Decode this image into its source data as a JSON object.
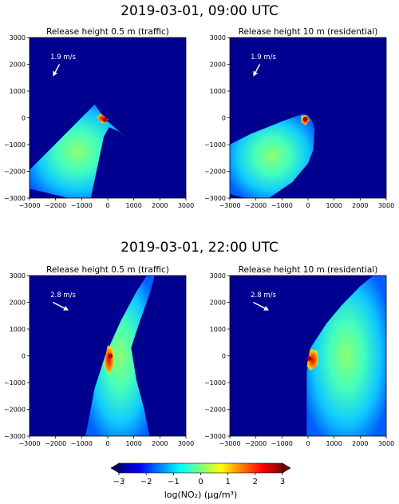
{
  "figure": {
    "row_titles": [
      "2019-03-01, 09:00 UTC",
      "2019-03-01, 22:00 UTC"
    ]
  },
  "chart_data": [
    {
      "type": "heatmap",
      "row": 0,
      "col": 0,
      "title": "Release height 0.5 m (traffic)",
      "xlim": [
        -3000,
        3000
      ],
      "ylim": [
        -3000,
        3000
      ],
      "xticks": [
        -3000,
        -2000,
        -1000,
        0,
        1000,
        2000,
        3000
      ],
      "yticks": [
        -3000,
        -2000,
        -1000,
        0,
        1000,
        2000,
        3000
      ],
      "wind_label": "1.9 m/s",
      "wind_arrow": {
        "from": [
          -1850,
          2000
        ],
        "to": [
          -2100,
          1550
        ]
      },
      "plume_polygon": [
        [
          -500,
          500
        ],
        [
          -3000,
          -1950
        ],
        [
          -3000,
          -2650
        ],
        [
          -1500,
          -3000
        ],
        [
          -650,
          -3000
        ],
        [
          -150,
          -700
        ],
        [
          50,
          -350
        ],
        [
          400,
          -500
        ],
        [
          700,
          -750
        ],
        [
          200,
          -300
        ],
        [
          -50,
          -100
        ],
        [
          -250,
          150
        ]
      ],
      "peak_polygon": [
        [
          -260,
          160
        ],
        [
          -420,
          20
        ],
        [
          -250,
          -200
        ],
        [
          -60,
          -180
        ],
        [
          20,
          -70
        ]
      ],
      "source": [
        -100,
        -80
      ]
    },
    {
      "type": "heatmap",
      "row": 0,
      "col": 1,
      "title": "Release height 10 m (residential)",
      "xlim": [
        -3000,
        3000
      ],
      "ylim": [
        -3000,
        3000
      ],
      "xticks": [
        -3000,
        -2000,
        -1000,
        0,
        1000,
        2000,
        3000
      ],
      "yticks": [
        -3000,
        -2000,
        -1000,
        0,
        1000,
        2000,
        3000
      ],
      "wind_label": "1.9 m/s",
      "wind_arrow": {
        "from": [
          -1850,
          2000
        ],
        "to": [
          -2100,
          1550
        ]
      },
      "plume_polygon": [
        [
          -200,
          150
        ],
        [
          -900,
          -100
        ],
        [
          -2200,
          -600
        ],
        [
          -3000,
          -1000
        ],
        [
          -3000,
          -2850
        ],
        [
          -2400,
          -3000
        ],
        [
          -1500,
          -3000
        ],
        [
          -600,
          -2400
        ],
        [
          0,
          -1700
        ],
        [
          200,
          -1200
        ],
        [
          250,
          -400
        ],
        [
          150,
          -100
        ],
        [
          0,
          80
        ]
      ],
      "peak_polygon": [
        [
          -280,
          80
        ],
        [
          -60,
          100
        ],
        [
          60,
          -80
        ],
        [
          -80,
          -280
        ],
        [
          -260,
          -180
        ]
      ],
      "source": [
        -100,
        -50
      ]
    },
    {
      "type": "heatmap",
      "row": 1,
      "col": 0,
      "title": "Release height 0.5 m (traffic)",
      "xlim": [
        -3000,
        3000
      ],
      "ylim": [
        -3000,
        3000
      ],
      "xticks": [
        -3000,
        -2000,
        -1000,
        0,
        1000,
        2000,
        3000
      ],
      "yticks": [
        -3000,
        -2000,
        -1000,
        0,
        1000,
        2000,
        3000
      ],
      "wind_label": "2.8 m/s",
      "wind_arrow": {
        "from": [
          -2100,
          2000
        ],
        "to": [
          -1500,
          1700
        ]
      },
      "plume_polygon": [
        [
          -850,
          -3000
        ],
        [
          -500,
          -1200
        ],
        [
          -100,
          0
        ],
        [
          500,
          1300
        ],
        [
          1100,
          2400
        ],
        [
          1500,
          3000
        ],
        [
          1800,
          3000
        ],
        [
          1600,
          2300
        ],
        [
          1200,
          1200
        ],
        [
          900,
          300
        ],
        [
          1100,
          -900
        ],
        [
          1400,
          -2000
        ],
        [
          1600,
          -3000
        ]
      ],
      "peak_polygon": [
        [
          -150,
          -300
        ],
        [
          0,
          400
        ],
        [
          250,
          250
        ],
        [
          250,
          -350
        ],
        [
          50,
          -700
        ]
      ],
      "source": [
        100,
        0
      ]
    },
    {
      "type": "heatmap",
      "row": 1,
      "col": 1,
      "title": "Release height 10 m (residential)",
      "xlim": [
        -3000,
        3000
      ],
      "ylim": [
        -3000,
        3000
      ],
      "xticks": [
        -3000,
        -2000,
        -1000,
        0,
        1000,
        2000,
        3000
      ],
      "yticks": [
        -3000,
        -2000,
        -1000,
        0,
        1000,
        2000,
        3000
      ],
      "wind_label": "2.8 m/s",
      "wind_arrow": {
        "from": [
          -2100,
          2000
        ],
        "to": [
          -1500,
          1700
        ]
      },
      "plume_polygon": [
        [
          -50,
          -3000
        ],
        [
          -50,
          -600
        ],
        [
          100,
          300
        ],
        [
          700,
          1200
        ],
        [
          1300,
          1900
        ],
        [
          2000,
          2600
        ],
        [
          2500,
          3000
        ],
        [
          3000,
          3000
        ],
        [
          3000,
          -3000
        ]
      ],
      "peak_polygon": [
        [
          -50,
          -400
        ],
        [
          80,
          250
        ],
        [
          350,
          200
        ],
        [
          400,
          -300
        ],
        [
          100,
          -550
        ]
      ],
      "source": [
        50,
        -100
      ]
    },
    {
      "type": "colorbar",
      "label": "log(NO₂) (µg/m³)",
      "range": [
        -3,
        3
      ],
      "ticks": [
        -3,
        -2,
        -1,
        0,
        1,
        2,
        3
      ],
      "colormap": [
        "#00007f",
        "#0000ff",
        "#007fff",
        "#00ffff",
        "#7fff7f",
        "#ffff00",
        "#ff7f00",
        "#ff0000",
        "#7f0000"
      ]
    }
  ]
}
